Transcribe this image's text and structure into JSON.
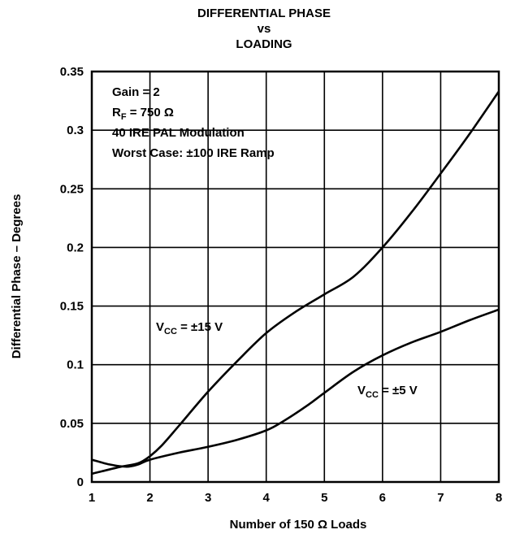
{
  "chart_data": {
    "type": "line",
    "title": [
      "DIFFERENTIAL PHASE",
      "vs",
      "LOADING"
    ],
    "xlabel": "Number of 150 Ω Loads",
    "ylabel": "Differential Phase – Degrees",
    "xlim": [
      1,
      8
    ],
    "ylim": [
      0,
      0.35
    ],
    "xticks": [
      "1",
      "2",
      "3",
      "4",
      "5",
      "6",
      "7",
      "8"
    ],
    "yticks": [
      "0",
      "0.05",
      "0.1",
      "0.15",
      "0.2",
      "0.25",
      "0.3",
      "0.35"
    ],
    "grid": true,
    "annotations": [
      "Gain = 2",
      "R_F = 750 Ω",
      "40 IRE PAL Modulation",
      "Worst Case: ±100 IRE Ramp"
    ],
    "annotation_lines": {
      "gain": "Gain = 2",
      "rf_main": "R",
      "rf_sub": "F",
      "rf_value": " = 750 Ω",
      "pal": "40 IRE PAL Modulation",
      "worst": "Worst Case: ±100 IRE Ramp"
    },
    "series": [
      {
        "name": "V_CC = ±15 V",
        "label_main": "V",
        "label_sub": "CC",
        "label_value": " = ±15 V",
        "x": [
          1,
          1.5,
          1.8,
          2,
          2.2,
          2.5,
          3,
          3.5,
          4,
          4.5,
          5,
          5.5,
          6,
          6.5,
          7,
          7.5,
          8
        ],
        "y": [
          0.007,
          0.013,
          0.016,
          0.022,
          0.031,
          0.048,
          0.077,
          0.103,
          0.127,
          0.145,
          0.16,
          0.175,
          0.2,
          0.23,
          0.263,
          0.297,
          0.333
        ]
      },
      {
        "name": "V_CC = ±5 V",
        "label_main": "V",
        "label_sub": "CC",
        "label_value": " = ±5 V",
        "x": [
          1,
          1.3,
          1.6,
          1.8,
          2,
          2.5,
          3,
          3.5,
          4,
          4.3,
          4.7,
          5,
          5.5,
          6,
          6.5,
          7,
          7.5,
          8
        ],
        "y": [
          0.019,
          0.015,
          0.013,
          0.015,
          0.019,
          0.025,
          0.03,
          0.036,
          0.044,
          0.052,
          0.065,
          0.076,
          0.094,
          0.108,
          0.119,
          0.128,
          0.138,
          0.147
        ]
      }
    ]
  },
  "colors": {
    "line": "#000000",
    "grid": "#000000",
    "background": "#ffffff"
  }
}
